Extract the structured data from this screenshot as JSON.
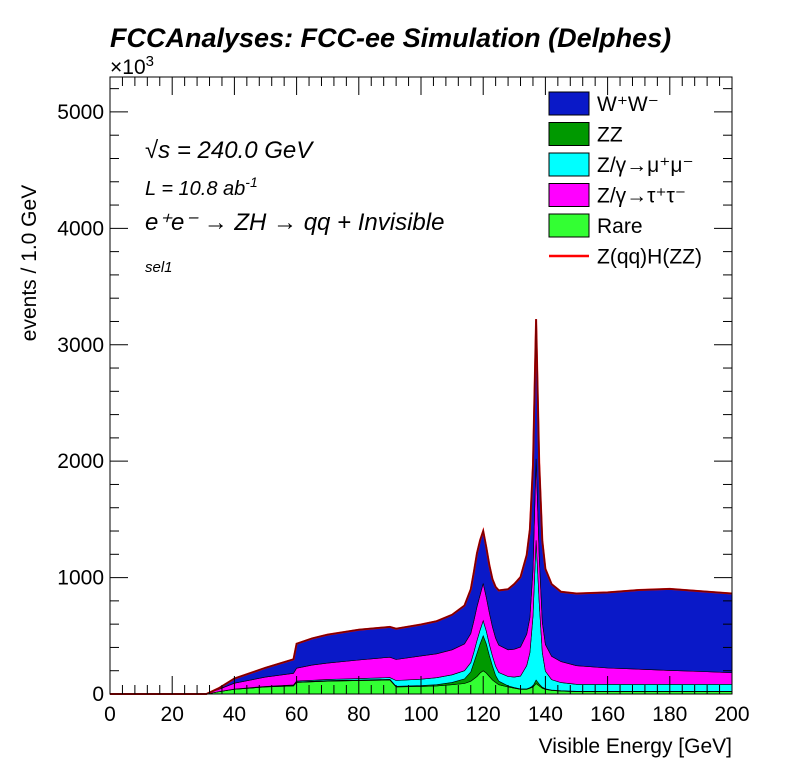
{
  "chart_data": {
    "type": "area",
    "stacked": true,
    "title": "FCCAnalyses: FCC-ee Simulation (Delphes)",
    "xlabel": "Visible Energy [GeV]",
    "ylabel": "events / 1.0 GeV",
    "y_exponent": "×10",
    "y_exponent_power": "3",
    "xlim": [
      0,
      200
    ],
    "ylim": [
      0,
      5300
    ],
    "x_ticks": [
      0,
      20,
      40,
      60,
      80,
      100,
      120,
      140,
      160,
      180,
      200
    ],
    "x_tick_labels": [
      "0",
      "20",
      "40",
      "60",
      "80",
      "100",
      "120",
      "140",
      "160",
      "180",
      "200"
    ],
    "y_ticks": [
      0,
      1000,
      2000,
      3000,
      4000,
      5000
    ],
    "y_tick_labels": [
      "0",
      "1000",
      "2000",
      "3000",
      "4000",
      "5000"
    ],
    "grid": false,
    "legend_position": "top-right",
    "annotations": {
      "sqrt_s": "√s = 240.0 GeV",
      "lumi": "L = 10.8 ab",
      "lumi_power": "-1",
      "process": "e⁺e⁻ → ZH → qq + Invisible",
      "selection": "sel1"
    },
    "x": [
      0,
      31,
      35,
      40,
      50,
      59,
      60,
      65,
      70,
      80,
      90,
      92,
      100,
      105,
      110,
      114,
      116,
      117,
      118,
      119,
      120,
      121,
      122,
      123,
      124,
      125,
      128,
      130,
      132,
      134,
      135,
      136,
      137,
      138,
      139,
      140,
      142,
      145,
      150,
      160,
      170,
      180,
      190,
      200
    ],
    "series": [
      {
        "name": "Rare",
        "legend": "Rare",
        "color": "#33ff33",
        "kind": "fill",
        "values": [
          0,
          0,
          20,
          40,
          60,
          70,
          100,
          105,
          110,
          115,
          120,
          60,
          65,
          70,
          80,
          90,
          110,
          130,
          150,
          180,
          200,
          180,
          150,
          120,
          100,
          80,
          60,
          50,
          40,
          40,
          50,
          60,
          90,
          70,
          50,
          40,
          30,
          25,
          20,
          20,
          20,
          20,
          20,
          20
        ]
      },
      {
        "name": "ZZ",
        "legend": "ZZ",
        "color": "#009900",
        "kind": "fill",
        "values": [
          0,
          0,
          0,
          1,
          2,
          3,
          4,
          4,
          5,
          5,
          6,
          6,
          7,
          10,
          20,
          40,
          80,
          140,
          200,
          250,
          300,
          250,
          180,
          120,
          60,
          30,
          10,
          5,
          4,
          4,
          5,
          10,
          30,
          15,
          8,
          5,
          4,
          3,
          3,
          3,
          3,
          3,
          3,
          3
        ]
      },
      {
        "name": "Z/γ→μ⁺μ⁻",
        "legend": "Z/γ→μ⁺μ⁻",
        "color": "#00ffff",
        "kind": "fill",
        "values": [
          0,
          0,
          0,
          2,
          3,
          5,
          8,
          9,
          10,
          12,
          15,
          50,
          55,
          60,
          65,
          70,
          80,
          90,
          110,
          120,
          130,
          110,
          95,
          85,
          80,
          75,
          80,
          90,
          110,
          200,
          300,
          600,
          1200,
          700,
          300,
          150,
          90,
          70,
          60,
          60,
          60,
          60,
          60,
          60
        ]
      },
      {
        "name": "Z/γ→τ⁺τ⁻",
        "legend": "Z/γ→τ⁺τ⁻",
        "color": "#ff00ff",
        "kind": "fill",
        "values": [
          0,
          0,
          20,
          50,
          80,
          100,
          110,
          130,
          140,
          160,
          175,
          180,
          200,
          205,
          215,
          230,
          250,
          270,
          290,
          300,
          320,
          290,
          270,
          250,
          240,
          235,
          230,
          240,
          250,
          270,
          300,
          400,
          700,
          400,
          260,
          230,
          200,
          180,
          160,
          140,
          130,
          120,
          110,
          100
        ]
      },
      {
        "name": "W⁺W⁻",
        "legend": "W⁺W⁻",
        "color": "#0a19c8",
        "kind": "fill",
        "values": [
          0,
          0,
          10,
          40,
          80,
          120,
          210,
          230,
          245,
          260,
          260,
          265,
          270,
          280,
          300,
          330,
          380,
          420,
          460,
          470,
          450,
          430,
          410,
          410,
          440,
          470,
          520,
          560,
          600,
          680,
          760,
          900,
          1200,
          800,
          700,
          650,
          620,
          600,
          620,
          650,
          680,
          700,
          690,
          680
        ]
      },
      {
        "name": "Z(qq)H(ZZ)",
        "legend": "Z(qq)H(ZZ)",
        "color": "#ff0000",
        "kind": "line",
        "values": [
          0,
          0,
          0,
          0,
          0,
          0,
          0,
          0,
          0,
          0,
          0,
          0,
          0,
          0,
          0,
          0,
          0,
          0,
          0,
          0,
          0,
          0,
          0,
          0,
          0,
          0,
          0,
          0,
          0,
          0,
          0,
          0,
          0,
          0,
          0,
          0,
          0,
          0,
          0,
          0,
          0,
          0,
          0,
          0
        ]
      }
    ]
  }
}
